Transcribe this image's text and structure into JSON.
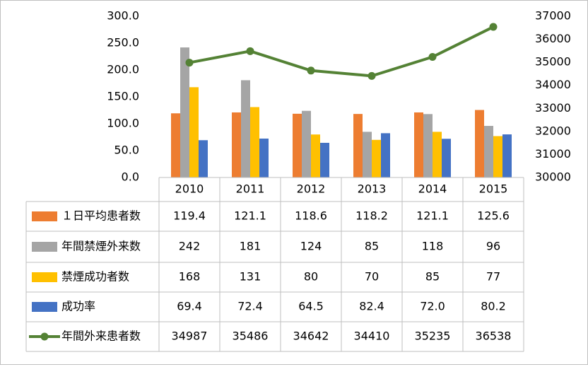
{
  "chart_data": {
    "type": "bar+line",
    "categories": [
      "2010",
      "2011",
      "2012",
      "2013",
      "2014",
      "2015"
    ],
    "series": [
      {
        "name": "１日平均患者数",
        "kind": "bar",
        "axis": "left",
        "color": "#ED7D31",
        "values": [
          119.4,
          121.1,
          118.6,
          118.2,
          121.1,
          125.6
        ],
        "display": [
          "119.4",
          "121.1",
          "118.6",
          "118.2",
          "121.1",
          "125.6"
        ]
      },
      {
        "name": "年間禁煙外来数",
        "kind": "bar",
        "axis": "left",
        "color": "#A5A5A5",
        "values": [
          242,
          181,
          124,
          85,
          118,
          96
        ],
        "display": [
          "242",
          "181",
          "124",
          "85",
          "118",
          "96"
        ]
      },
      {
        "name": "禁煙成功者数",
        "kind": "bar",
        "axis": "left",
        "color": "#FFC000",
        "values": [
          168,
          131,
          80,
          70,
          85,
          77
        ],
        "display": [
          "168",
          "131",
          "80",
          "70",
          "85",
          "77"
        ]
      },
      {
        "name": "成功率",
        "kind": "bar",
        "axis": "left",
        "color": "#4472C4",
        "values": [
          69.4,
          72.4,
          64.5,
          82.4,
          72.0,
          80.2
        ],
        "display": [
          "69.4",
          "72.4",
          "64.5",
          "82.4",
          "72.0",
          "80.2"
        ]
      },
      {
        "name": "年間外来患者数",
        "kind": "line",
        "axis": "right",
        "color": "#548235",
        "values": [
          34987,
          35486,
          34642,
          34410,
          35235,
          36538
        ],
        "display": [
          "34987",
          "35486",
          "34642",
          "34410",
          "35235",
          "36538"
        ]
      }
    ],
    "y_left": {
      "min": 0,
      "max": 300,
      "ticks": [
        "0.0",
        "50.0",
        "100.0",
        "150.0",
        "200.0",
        "250.0",
        "300.0"
      ]
    },
    "y_right": {
      "min": 30000,
      "max": 37000,
      "ticks": [
        "30000",
        "31000",
        "32000",
        "33000",
        "34000",
        "35000",
        "36000",
        "37000"
      ]
    },
    "grid": false,
    "legend": "data-table"
  }
}
